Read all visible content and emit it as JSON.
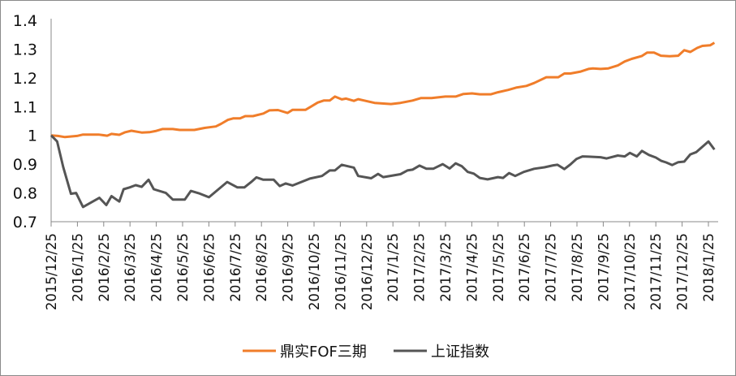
{
  "chart_data": {
    "type": "line",
    "title": "",
    "xlabel": "",
    "ylabel": "",
    "ylim": [
      0.7,
      1.4
    ],
    "yticks": [
      "0.7",
      "0.8",
      "0.9",
      "1",
      "1.1",
      "1.2",
      "1.3",
      "1.4"
    ],
    "xlim": [
      "2015-12-25",
      "2018-02-01"
    ],
    "xtick_labels": [
      "2015/12/25",
      "2016/1/25",
      "2016/2/25",
      "2016/3/25",
      "2016/4/25",
      "2016/5/25",
      "2016/6/25",
      "2016/7/25",
      "2016/8/25",
      "2016/9/25",
      "2016/10/25",
      "2016/11/25",
      "2016/12/25",
      "2017/1/25",
      "2017/2/25",
      "2017/3/25",
      "2017/4/25",
      "2017/5/25",
      "2017/6/25",
      "2017/7/25",
      "2017/8/25",
      "2017/9/25",
      "2017/10/25",
      "2017/11/25",
      "2017/12/25",
      "2018/1/25"
    ],
    "grid": false,
    "legend_position": "bottom",
    "series": [
      {
        "name": "鼎实FOF三期",
        "color": "#F07D2A",
        "points": [
          [
            "2015-12-25",
            1.0
          ],
          [
            "2016-01-02",
            0.998
          ],
          [
            "2016-01-10",
            0.994
          ],
          [
            "2016-01-24",
            0.998
          ],
          [
            "2016-01-31",
            1.003
          ],
          [
            "2016-02-18",
            1.003
          ],
          [
            "2016-02-28",
            0.999
          ],
          [
            "2016-03-04",
            1.005
          ],
          [
            "2016-03-13",
            1.002
          ],
          [
            "2016-03-20",
            1.011
          ],
          [
            "2016-03-27",
            1.016
          ],
          [
            "2016-04-08",
            1.01
          ],
          [
            "2016-04-17",
            1.011
          ],
          [
            "2016-04-24",
            1.015
          ],
          [
            "2016-05-02",
            1.022
          ],
          [
            "2016-05-14",
            1.022
          ],
          [
            "2016-05-22",
            1.019
          ],
          [
            "2016-06-08",
            1.019
          ],
          [
            "2016-06-20",
            1.026
          ],
          [
            "2016-07-03",
            1.031
          ],
          [
            "2016-07-09",
            1.04
          ],
          [
            "2016-07-17",
            1.054
          ],
          [
            "2016-07-23",
            1.059
          ],
          [
            "2016-07-31",
            1.059
          ],
          [
            "2016-08-06",
            1.067
          ],
          [
            "2016-08-15",
            1.067
          ],
          [
            "2016-08-27",
            1.076
          ],
          [
            "2016-09-03",
            1.087
          ],
          [
            "2016-09-13",
            1.088
          ],
          [
            "2016-09-24",
            1.078
          ],
          [
            "2016-09-30",
            1.089
          ],
          [
            "2016-10-15",
            1.089
          ],
          [
            "2016-10-29",
            1.114
          ],
          [
            "2016-11-05",
            1.121
          ],
          [
            "2016-11-12",
            1.121
          ],
          [
            "2016-11-18",
            1.135
          ],
          [
            "2016-11-26",
            1.125
          ],
          [
            "2016-12-01",
            1.128
          ],
          [
            "2016-12-10",
            1.12
          ],
          [
            "2016-12-15",
            1.126
          ],
          [
            "2016-12-22",
            1.121
          ],
          [
            "2017-01-03",
            1.113
          ],
          [
            "2017-01-22",
            1.109
          ],
          [
            "2017-02-02",
            1.113
          ],
          [
            "2017-02-16",
            1.121
          ],
          [
            "2017-02-26",
            1.13
          ],
          [
            "2017-03-10",
            1.13
          ],
          [
            "2017-03-26",
            1.135
          ],
          [
            "2017-04-07",
            1.135
          ],
          [
            "2017-04-16",
            1.144
          ],
          [
            "2017-04-26",
            1.146
          ],
          [
            "2017-05-05",
            1.143
          ],
          [
            "2017-05-18",
            1.143
          ],
          [
            "2017-05-26",
            1.15
          ],
          [
            "2017-06-07",
            1.158
          ],
          [
            "2017-06-16",
            1.166
          ],
          [
            "2017-06-28",
            1.172
          ],
          [
            "2017-07-07",
            1.182
          ],
          [
            "2017-07-21",
            1.202
          ],
          [
            "2017-08-04",
            1.202
          ],
          [
            "2017-08-11",
            1.215
          ],
          [
            "2017-08-18",
            1.215
          ],
          [
            "2017-08-25",
            1.219
          ],
          [
            "2017-08-30",
            1.222
          ],
          [
            "2017-09-08",
            1.231
          ],
          [
            "2017-09-13",
            1.233
          ],
          [
            "2017-09-22",
            1.231
          ],
          [
            "2017-10-01",
            1.233
          ],
          [
            "2017-10-12",
            1.243
          ],
          [
            "2017-10-20",
            1.257
          ],
          [
            "2017-10-28",
            1.266
          ],
          [
            "2017-11-09",
            1.276
          ],
          [
            "2017-11-15",
            1.288
          ],
          [
            "2017-11-23",
            1.288
          ],
          [
            "2017-12-01",
            1.277
          ],
          [
            "2017-12-11",
            1.275
          ],
          [
            "2017-12-21",
            1.277
          ],
          [
            "2017-12-28",
            1.296
          ],
          [
            "2018-01-04",
            1.29
          ],
          [
            "2018-01-12",
            1.304
          ],
          [
            "2018-01-18",
            1.311
          ],
          [
            "2018-01-27",
            1.313
          ],
          [
            "2018-02-01",
            1.322
          ]
        ]
      },
      {
        "name": "上证指数",
        "color": "#555555",
        "points": [
          [
            "2015-12-25",
            1.0
          ],
          [
            "2016-01-01",
            0.979
          ],
          [
            "2016-01-08",
            0.89
          ],
          [
            "2016-01-17",
            0.797
          ],
          [
            "2016-01-23",
            0.8
          ],
          [
            "2016-01-31",
            0.751
          ],
          [
            "2016-02-19",
            0.783
          ],
          [
            "2016-02-27",
            0.758
          ],
          [
            "2016-03-04",
            0.789
          ],
          [
            "2016-03-13",
            0.77
          ],
          [
            "2016-03-18",
            0.813
          ],
          [
            "2016-03-25",
            0.819
          ],
          [
            "2016-04-01",
            0.827
          ],
          [
            "2016-04-08",
            0.821
          ],
          [
            "2016-04-16",
            0.846
          ],
          [
            "2016-04-22",
            0.813
          ],
          [
            "2016-05-06",
            0.8
          ],
          [
            "2016-05-14",
            0.777
          ],
          [
            "2016-05-28",
            0.777
          ],
          [
            "2016-06-04",
            0.807
          ],
          [
            "2016-06-13",
            0.799
          ],
          [
            "2016-06-25",
            0.785
          ],
          [
            "2016-07-16",
            0.838
          ],
          [
            "2016-07-28",
            0.819
          ],
          [
            "2016-08-05",
            0.819
          ],
          [
            "2016-08-13",
            0.838
          ],
          [
            "2016-08-19",
            0.854
          ],
          [
            "2016-08-27",
            0.846
          ],
          [
            "2016-09-08",
            0.846
          ],
          [
            "2016-09-15",
            0.824
          ],
          [
            "2016-09-22",
            0.833
          ],
          [
            "2016-09-30",
            0.826
          ],
          [
            "2016-10-20",
            0.85
          ],
          [
            "2016-11-03",
            0.859
          ],
          [
            "2016-11-12",
            0.878
          ],
          [
            "2016-11-18",
            0.878
          ],
          [
            "2016-11-26",
            0.898
          ],
          [
            "2016-12-10",
            0.888
          ],
          [
            "2016-12-15",
            0.859
          ],
          [
            "2016-12-30",
            0.851
          ],
          [
            "2017-01-07",
            0.866
          ],
          [
            "2017-01-13",
            0.855
          ],
          [
            "2017-02-02",
            0.865
          ],
          [
            "2017-02-10",
            0.878
          ],
          [
            "2017-02-16",
            0.881
          ],
          [
            "2017-02-24",
            0.895
          ],
          [
            "2017-03-04",
            0.884
          ],
          [
            "2017-03-12",
            0.884
          ],
          [
            "2017-03-16",
            0.89
          ],
          [
            "2017-03-23",
            0.9
          ],
          [
            "2017-03-31",
            0.885
          ],
          [
            "2017-04-07",
            0.903
          ],
          [
            "2017-04-14",
            0.893
          ],
          [
            "2017-04-21",
            0.873
          ],
          [
            "2017-04-28",
            0.867
          ],
          [
            "2017-05-05",
            0.852
          ],
          [
            "2017-05-14",
            0.847
          ],
          [
            "2017-05-26",
            0.855
          ],
          [
            "2017-06-01",
            0.852
          ],
          [
            "2017-06-08",
            0.869
          ],
          [
            "2017-06-15",
            0.859
          ],
          [
            "2017-06-25",
            0.873
          ],
          [
            "2017-07-07",
            0.884
          ],
          [
            "2017-07-19",
            0.889
          ],
          [
            "2017-07-29",
            0.896
          ],
          [
            "2017-08-03",
            0.898
          ],
          [
            "2017-08-11",
            0.883
          ],
          [
            "2017-08-18",
            0.899
          ],
          [
            "2017-08-25",
            0.918
          ],
          [
            "2017-09-01",
            0.927
          ],
          [
            "2017-09-08",
            0.926
          ],
          [
            "2017-09-22",
            0.924
          ],
          [
            "2017-09-29",
            0.92
          ],
          [
            "2017-10-12",
            0.93
          ],
          [
            "2017-10-20",
            0.927
          ],
          [
            "2017-10-26",
            0.939
          ],
          [
            "2017-11-03",
            0.927
          ],
          [
            "2017-11-09",
            0.946
          ],
          [
            "2017-11-17",
            0.932
          ],
          [
            "2017-11-25",
            0.923
          ],
          [
            "2017-12-01",
            0.912
          ],
          [
            "2017-12-07",
            0.906
          ],
          [
            "2017-12-14",
            0.897
          ],
          [
            "2017-12-21",
            0.907
          ],
          [
            "2017-12-28",
            0.909
          ],
          [
            "2018-01-04",
            0.934
          ],
          [
            "2018-01-11",
            0.942
          ],
          [
            "2018-01-25",
            0.979
          ],
          [
            "2018-02-01",
            0.951
          ]
        ]
      }
    ]
  }
}
